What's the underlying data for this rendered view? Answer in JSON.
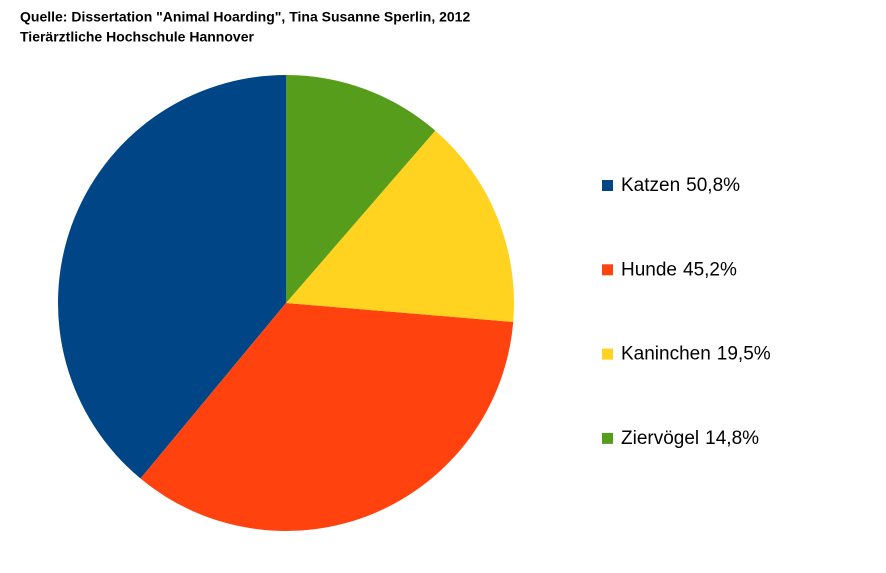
{
  "chart_data": {
    "type": "pie",
    "title": "Quelle: Dissertation \"Animal Hoarding\", Tina Susanne Sperlin, 2012",
    "subtitle": "Tierärztliche Hochschule Hannover",
    "categories": [
      "Katzen",
      "Hunde",
      "Kaninchen",
      "Ziervögel"
    ],
    "values": [
      50.8,
      45.2,
      19.5,
      14.8
    ],
    "value_labels": [
      "50,8%",
      "45,2%",
      "19,5%",
      "14,8%"
    ],
    "colors": [
      "#004586",
      "#ff420e",
      "#ffd320",
      "#579d1c"
    ],
    "legend": "right"
  }
}
